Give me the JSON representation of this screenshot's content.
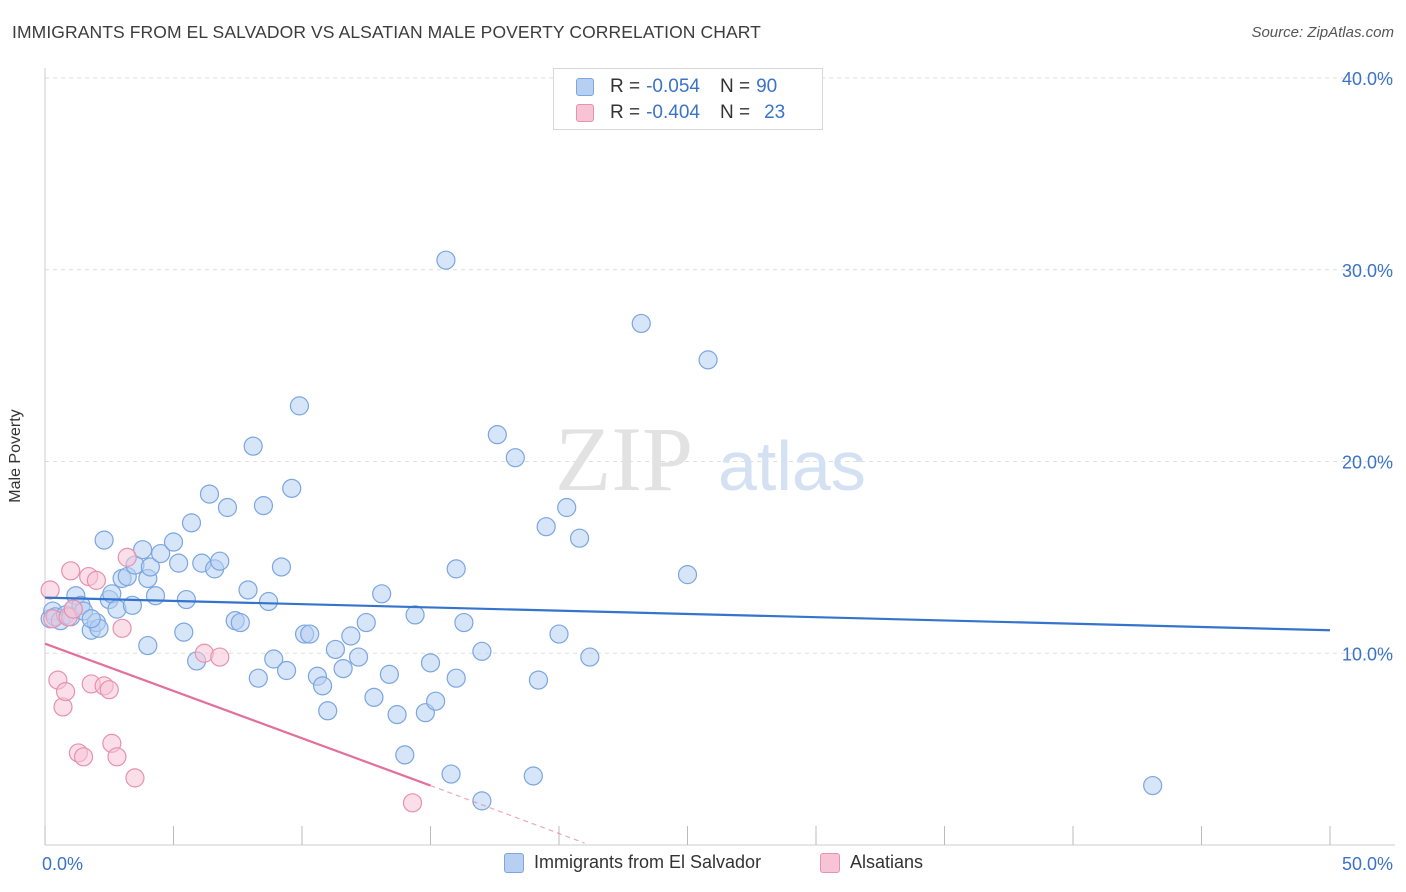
{
  "header": {
    "title": "IMMIGRANTS FROM EL SALVADOR VS ALSATIAN MALE POVERTY CORRELATION CHART",
    "source": "Source: ZipAtlas.com"
  },
  "legend_top": {
    "rows": [
      {
        "r_label": "R =",
        "r_value": "-0.054",
        "n_label": "N =",
        "n_value": "90"
      },
      {
        "r_label": "R =",
        "r_value": "-0.404",
        "n_label": "N =",
        "n_value": "23"
      }
    ]
  },
  "watermark": {
    "zip": "ZIP",
    "atlas": "atlas"
  },
  "colors": {
    "blue_fill": "#b7d0f2",
    "blue_stroke": "#7ba6e0",
    "blue_line": "#3574cc",
    "pink_fill": "#f7c4d6",
    "pink_stroke": "#e890b0",
    "pink_line": "#e2709a",
    "tick_label": "#3a73c8",
    "grid": "#dddddd"
  },
  "chart_data": {
    "type": "scatter",
    "title": "IMMIGRANTS FROM EL SALVADOR VS ALSATIAN MALE POVERTY CORRELATION CHART",
    "xlabel": "",
    "ylabel": "Male Poverty",
    "xlim": [
      0,
      50
    ],
    "ylim": [
      0,
      40
    ],
    "x_tick_labels": [
      "0.0%",
      "50.0%"
    ],
    "y_ticks": [
      10,
      20,
      30,
      40
    ],
    "y_tick_labels": [
      "10.0%",
      "20.0%",
      "30.0%",
      "40.0%"
    ],
    "grid": true,
    "legend_position": "bottom",
    "series": [
      {
        "name": "Immigrants from El Salvador",
        "r": -0.054,
        "n": 90,
        "trend": {
          "x": [
            0,
            50
          ],
          "y": [
            12.9,
            11.2
          ]
        },
        "points": [
          [
            0.2,
            11.8
          ],
          [
            0.3,
            12.2
          ],
          [
            0.4,
            11.9
          ],
          [
            0.6,
            11.7
          ],
          [
            0.8,
            12.0
          ],
          [
            1.0,
            11.9
          ],
          [
            1.1,
            12.3
          ],
          [
            1.2,
            13.0
          ],
          [
            1.4,
            12.5
          ],
          [
            1.5,
            12.2
          ],
          [
            1.8,
            11.2
          ],
          [
            2.0,
            11.6
          ],
          [
            2.1,
            11.3
          ],
          [
            2.3,
            15.9
          ],
          [
            2.5,
            12.8
          ],
          [
            2.6,
            13.1
          ],
          [
            2.8,
            12.3
          ],
          [
            3.0,
            13.9
          ],
          [
            3.2,
            14.0
          ],
          [
            3.4,
            12.5
          ],
          [
            3.5,
            14.6
          ],
          [
            3.8,
            15.4
          ],
          [
            4.0,
            13.9
          ],
          [
            4.1,
            14.5
          ],
          [
            4.3,
            13.0
          ],
          [
            4.5,
            15.2
          ],
          [
            5.0,
            15.8
          ],
          [
            5.2,
            14.7
          ],
          [
            5.4,
            11.1
          ],
          [
            5.5,
            12.8
          ],
          [
            5.7,
            16.8
          ],
          [
            5.9,
            9.6
          ],
          [
            6.1,
            14.7
          ],
          [
            6.4,
            18.3
          ],
          [
            6.6,
            14.4
          ],
          [
            6.8,
            14.8
          ],
          [
            7.1,
            17.6
          ],
          [
            7.4,
            11.7
          ],
          [
            7.6,
            11.6
          ],
          [
            7.9,
            13.3
          ],
          [
            8.1,
            20.8
          ],
          [
            8.3,
            8.7
          ],
          [
            8.5,
            17.7
          ],
          [
            8.7,
            12.7
          ],
          [
            8.9,
            9.7
          ],
          [
            9.2,
            14.5
          ],
          [
            9.4,
            9.1
          ],
          [
            9.6,
            18.6
          ],
          [
            9.9,
            22.9
          ],
          [
            10.1,
            11.0
          ],
          [
            10.3,
            11.0
          ],
          [
            10.6,
            8.8
          ],
          [
            10.8,
            8.3
          ],
          [
            11.0,
            7.0
          ],
          [
            11.3,
            10.2
          ],
          [
            11.6,
            9.2
          ],
          [
            11.9,
            10.9
          ],
          [
            12.2,
            9.8
          ],
          [
            12.5,
            11.6
          ],
          [
            12.8,
            7.7
          ],
          [
            13.1,
            13.1
          ],
          [
            13.4,
            8.9
          ],
          [
            13.7,
            6.8
          ],
          [
            14.0,
            4.7
          ],
          [
            14.4,
            12.0
          ],
          [
            14.8,
            6.9
          ],
          [
            15.0,
            9.5
          ],
          [
            15.2,
            7.5
          ],
          [
            15.6,
            30.5
          ],
          [
            15.8,
            3.7
          ],
          [
            16.0,
            14.4
          ],
          [
            16.0,
            8.7
          ],
          [
            16.3,
            11.6
          ],
          [
            17.0,
            10.1
          ],
          [
            17.0,
            2.3
          ],
          [
            17.6,
            21.4
          ],
          [
            18.3,
            20.2
          ],
          [
            19.0,
            3.6
          ],
          [
            19.2,
            8.6
          ],
          [
            19.5,
            16.6
          ],
          [
            20.0,
            11.0
          ],
          [
            20.3,
            17.6
          ],
          [
            20.8,
            16.0
          ],
          [
            21.2,
            9.8
          ],
          [
            23.2,
            27.2
          ],
          [
            25.0,
            14.1
          ],
          [
            25.8,
            25.3
          ],
          [
            43.1,
            3.1
          ],
          [
            4.0,
            10.4
          ],
          [
            1.8,
            11.8
          ]
        ]
      },
      {
        "name": "Alsatians",
        "r": -0.404,
        "n": 23,
        "trend": {
          "x": [
            0,
            15
          ],
          "y": [
            10.5,
            3.1
          ]
        },
        "trend_dashed": {
          "x": [
            15,
            21
          ],
          "y": [
            3.1,
            0.1
          ]
        },
        "points": [
          [
            0.2,
            13.3
          ],
          [
            0.3,
            11.8
          ],
          [
            0.5,
            8.6
          ],
          [
            0.7,
            7.2
          ],
          [
            0.8,
            8.0
          ],
          [
            0.9,
            11.9
          ],
          [
            1.0,
            14.3
          ],
          [
            1.1,
            12.3
          ],
          [
            1.3,
            4.8
          ],
          [
            1.5,
            4.6
          ],
          [
            1.7,
            14.0
          ],
          [
            1.8,
            8.4
          ],
          [
            2.0,
            13.8
          ],
          [
            2.3,
            8.3
          ],
          [
            2.5,
            8.1
          ],
          [
            2.6,
            5.3
          ],
          [
            2.8,
            4.6
          ],
          [
            3.0,
            11.3
          ],
          [
            3.2,
            15.0
          ],
          [
            3.5,
            3.5
          ],
          [
            6.2,
            10.0
          ],
          [
            6.8,
            9.8
          ],
          [
            14.3,
            2.2
          ]
        ]
      }
    ]
  },
  "legend_bottom": {
    "items": [
      "Immigrants from El Salvador",
      "Alsatians"
    ]
  }
}
